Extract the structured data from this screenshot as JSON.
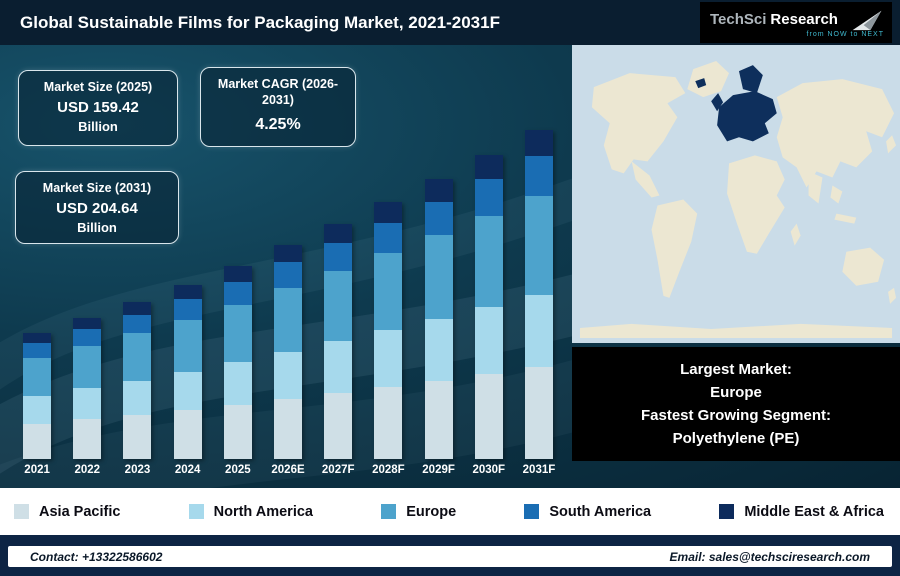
{
  "header": {
    "title": "Global Sustainable Films for Packaging Market, 2021-2031F",
    "logo": {
      "brand_part1": "TechSci",
      "brand_part2": "Research",
      "tagline": "from NOW to NEXT"
    }
  },
  "info_boxes": [
    {
      "label": "Market Size (2025)",
      "value": "USD 159.42",
      "unit": "Billion"
    },
    {
      "label": "Market CAGR (2026-2031)",
      "value": "4.25%",
      "unit": ""
    },
    {
      "label": "Market Size (2031)",
      "value": "USD 204.64",
      "unit": "Billion"
    }
  ],
  "chart_data": {
    "type": "bar",
    "stacked": true,
    "title": "Global Sustainable Films for Packaging Market, 2021-2031F",
    "xlabel": "",
    "ylabel": "",
    "ylim": [
      0,
      220
    ],
    "legend_position": "bottom",
    "categories": [
      "2021",
      "2022",
      "2023",
      "2024",
      "2025",
      "2026E",
      "2027F",
      "2028F",
      "2029F",
      "2030F",
      "2031F"
    ],
    "series": [
      {
        "name": "Asia Pacific",
        "color": "#cfdfe6",
        "values": [
          38.4,
          39.8,
          41.2,
          42.8,
          44.6,
          46.5,
          48.5,
          50.6,
          52.7,
          55.0,
          57.3
        ]
      },
      {
        "name": "North America",
        "color": "#a6d9ec",
        "values": [
          30.1,
          31.2,
          32.4,
          33.7,
          35.1,
          36.6,
          38.1,
          39.7,
          41.4,
          43.2,
          45.0
        ]
      },
      {
        "name": "Europe",
        "color": "#4da3cc",
        "values": [
          41.1,
          42.6,
          44.2,
          45.9,
          47.8,
          49.9,
          52.0,
          54.2,
          56.5,
          58.9,
          61.4
        ]
      },
      {
        "name": "South America",
        "color": "#1a6db3",
        "values": [
          16.4,
          17.0,
          17.7,
          18.4,
          19.1,
          19.9,
          20.8,
          21.7,
          22.6,
          23.6,
          24.6
        ]
      },
      {
        "name": "Middle East & Africa",
        "color": "#0d2b5c",
        "values": [
          11.0,
          11.4,
          11.8,
          12.2,
          12.8,
          13.3,
          13.9,
          14.4,
          15.1,
          15.7,
          16.4
        ]
      }
    ],
    "totals": [
      137.0,
      142.0,
      147.3,
      153.0,
      159.42,
      166.2,
      173.3,
      180.6,
      188.3,
      196.4,
      204.64
    ]
  },
  "map": {
    "highlighted_region": "Europe"
  },
  "callout": {
    "lines": [
      "Largest Market:",
      "Europe",
      "Fastest Growing Segment:",
      "Polyethylene (PE)"
    ]
  },
  "footer": {
    "contact": "Contact: +13322586602",
    "email": "Email: sales@techsciresearch.com"
  },
  "colors": {
    "map_land": "#ece7d2",
    "map_ocean": "#cadce8",
    "map_highlight": "#0e2f5c",
    "accent_navy": "#0d2444"
  }
}
